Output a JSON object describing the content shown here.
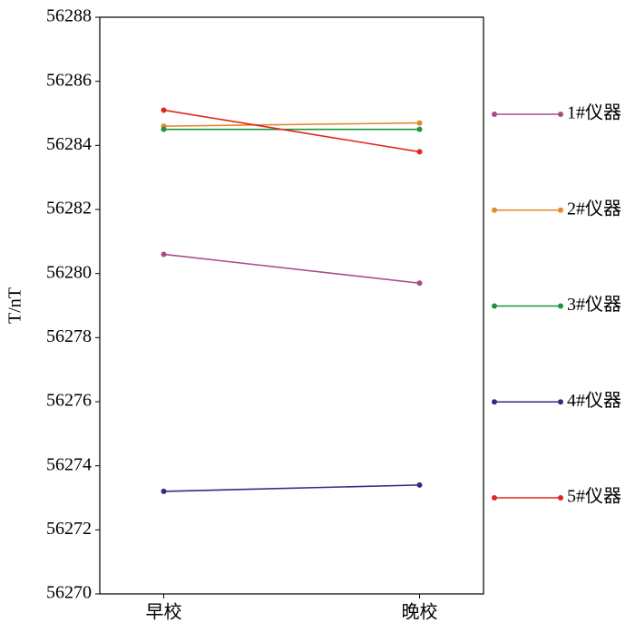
{
  "chart_data": {
    "type": "line",
    "y_label": "T/nT",
    "categories": [
      "早校",
      "晚校"
    ],
    "series": [
      {
        "name": "1#仪器",
        "color": "#a64d86",
        "values": [
          56280.6,
          56279.7
        ]
      },
      {
        "name": "2#仪器",
        "color": "#e8862a",
        "values": [
          56284.6,
          56284.7
        ]
      },
      {
        "name": "3#仪器",
        "color": "#1a9641",
        "values": [
          56284.5,
          56284.5
        ]
      },
      {
        "name": "4#仪器",
        "color": "#2e2e80",
        "values": [
          56273.2,
          56273.4
        ]
      },
      {
        "name": "5#仪器",
        "color": "#e0261e",
        "values": [
          56285.1,
          56283.8
        ]
      }
    ],
    "ylim": [
      56270,
      56288
    ],
    "yticks": [
      56270,
      56272,
      56274,
      56276,
      56278,
      56280,
      56282,
      56284,
      56286,
      56288
    ],
    "legend": "right"
  }
}
